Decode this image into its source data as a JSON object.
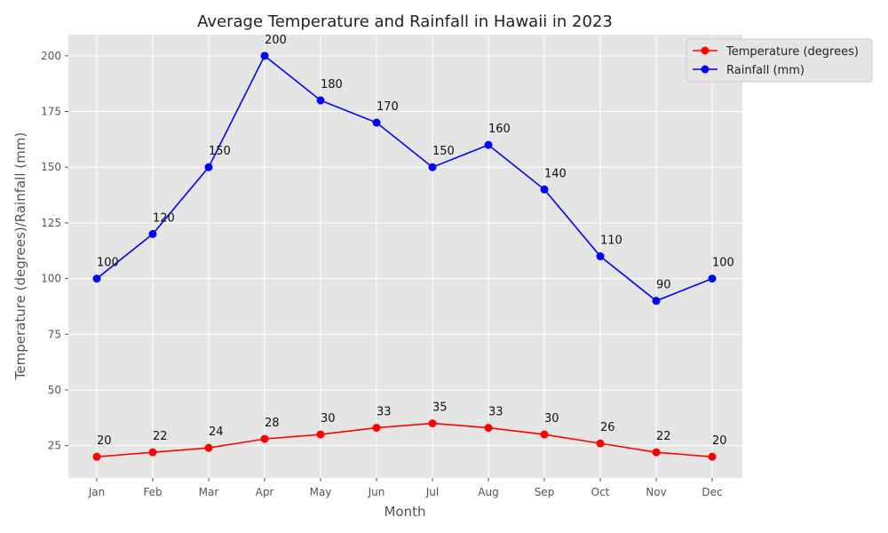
{
  "chart_data": {
    "type": "line",
    "title": "Average Temperature and Rainfall in Hawaii in 2023",
    "xlabel": "Month",
    "ylabel": "Temperature (degrees)/Rainfall (mm)",
    "categories": [
      "Jan",
      "Feb",
      "Mar",
      "Apr",
      "May",
      "Jun",
      "Jul",
      "Aug",
      "Sep",
      "Oct",
      "Nov",
      "Dec"
    ],
    "ylim": [
      10.5,
      209.5
    ],
    "yticks": [
      25,
      50,
      75,
      100,
      125,
      150,
      175,
      200
    ],
    "grid": true,
    "legend_position": "top-right",
    "series": [
      {
        "name": "Temperature (degrees)",
        "color": "#ff0000",
        "values": [
          20,
          22,
          24,
          28,
          30,
          33,
          35,
          33,
          30,
          26,
          22,
          20
        ]
      },
      {
        "name": "Rainfall (mm)",
        "color": "#0000ff",
        "values": [
          100,
          120,
          150,
          200,
          180,
          170,
          150,
          160,
          140,
          110,
          90,
          100
        ]
      }
    ]
  }
}
